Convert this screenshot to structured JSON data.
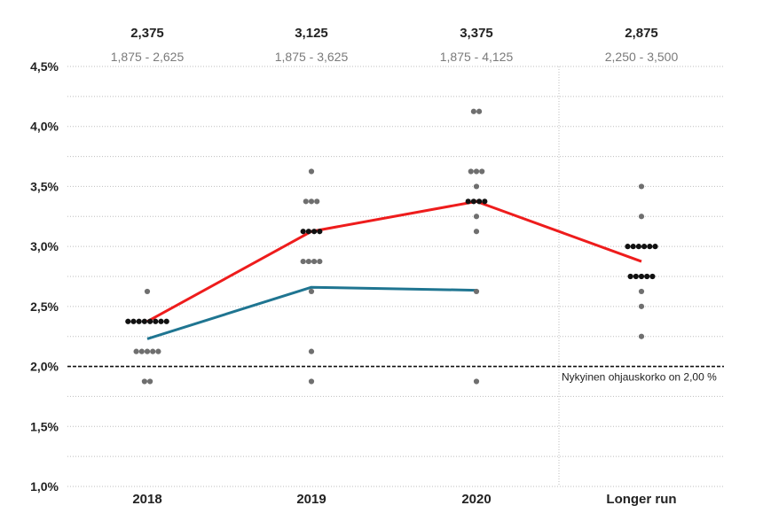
{
  "chart_data": {
    "type": "scatter",
    "categories": [
      "2018",
      "2019",
      "2020",
      "Longer run"
    ],
    "ylim": [
      1.0,
      4.5
    ],
    "y_ticks": [
      "1,0%",
      "1,5%",
      "2,0%",
      "2,5%",
      "3,0%",
      "3,5%",
      "4,0%",
      "4,5%"
    ],
    "medians": [
      "2,375",
      "3,125",
      "3,375",
      "2,875"
    ],
    "ranges": [
      "1,875 - 2,625",
      "1,875 - 3,625",
      "1,875 - 4,125",
      "2,250 - 3,500"
    ],
    "reference_line": {
      "value": 2.0,
      "label": "Nykyinen ohjauskorko on 2,00 %"
    },
    "grid": true,
    "dots": [
      {
        "category": "2018",
        "rate": 2.625,
        "gray": 1,
        "black": 0
      },
      {
        "category": "2018",
        "rate": 2.375,
        "gray": 0,
        "black": 8
      },
      {
        "category": "2018",
        "rate": 2.125,
        "gray": 5,
        "black": 0
      },
      {
        "category": "2018",
        "rate": 1.875,
        "gray": 2,
        "black": 0
      },
      {
        "category": "2019",
        "rate": 3.625,
        "gray": 1,
        "black": 0
      },
      {
        "category": "2019",
        "rate": 3.375,
        "gray": 3,
        "black": 0
      },
      {
        "category": "2019",
        "rate": 3.125,
        "gray": 0,
        "black": 4
      },
      {
        "category": "2019",
        "rate": 2.875,
        "gray": 4,
        "black": 0
      },
      {
        "category": "2019",
        "rate": 2.625,
        "gray": 1,
        "black": 0
      },
      {
        "category": "2019",
        "rate": 2.125,
        "gray": 1,
        "black": 0
      },
      {
        "category": "2019",
        "rate": 1.875,
        "gray": 1,
        "black": 0
      },
      {
        "category": "2020",
        "rate": 4.125,
        "gray": 2,
        "black": 0
      },
      {
        "category": "2020",
        "rate": 3.625,
        "gray": 3,
        "black": 0
      },
      {
        "category": "2020",
        "rate": 3.5,
        "gray": 1,
        "black": 0
      },
      {
        "category": "2020",
        "rate": 3.375,
        "gray": 0,
        "black": 4
      },
      {
        "category": "2020",
        "rate": 3.25,
        "gray": 1,
        "black": 0
      },
      {
        "category": "2020",
        "rate": 3.125,
        "gray": 1,
        "black": 0
      },
      {
        "category": "2020",
        "rate": 2.625,
        "gray": 1,
        "black": 0
      },
      {
        "category": "2020",
        "rate": 1.875,
        "gray": 1,
        "black": 0
      },
      {
        "category": "Longer run",
        "rate": 3.5,
        "gray": 1,
        "black": 0
      },
      {
        "category": "Longer run",
        "rate": 3.25,
        "gray": 1,
        "black": 0
      },
      {
        "category": "Longer run",
        "rate": 3.0,
        "gray": 0,
        "black": 6
      },
      {
        "category": "Longer run",
        "rate": 2.75,
        "gray": 0,
        "black": 5
      },
      {
        "category": "Longer run",
        "rate": 2.625,
        "gray": 1,
        "black": 0
      },
      {
        "category": "Longer run",
        "rate": 2.5,
        "gray": 1,
        "black": 0
      },
      {
        "category": "Longer run",
        "rate": 2.25,
        "gray": 1,
        "black": 0
      }
    ],
    "series": [
      {
        "color": "#ee1c1c",
        "x": [
          "2018",
          "2019",
          "2020",
          "Longer run"
        ],
        "values": [
          2.375,
          3.125,
          3.375,
          2.875
        ]
      },
      {
        "color": "#1f7591",
        "x": [
          "2018",
          "2019",
          "2020"
        ],
        "values": [
          2.23,
          2.66,
          2.635
        ]
      }
    ],
    "colors": {
      "gray_dot": "#6f6f6f",
      "black_dot": "#111111",
      "grid": "#bdbdbd",
      "reference": "#111111"
    }
  }
}
